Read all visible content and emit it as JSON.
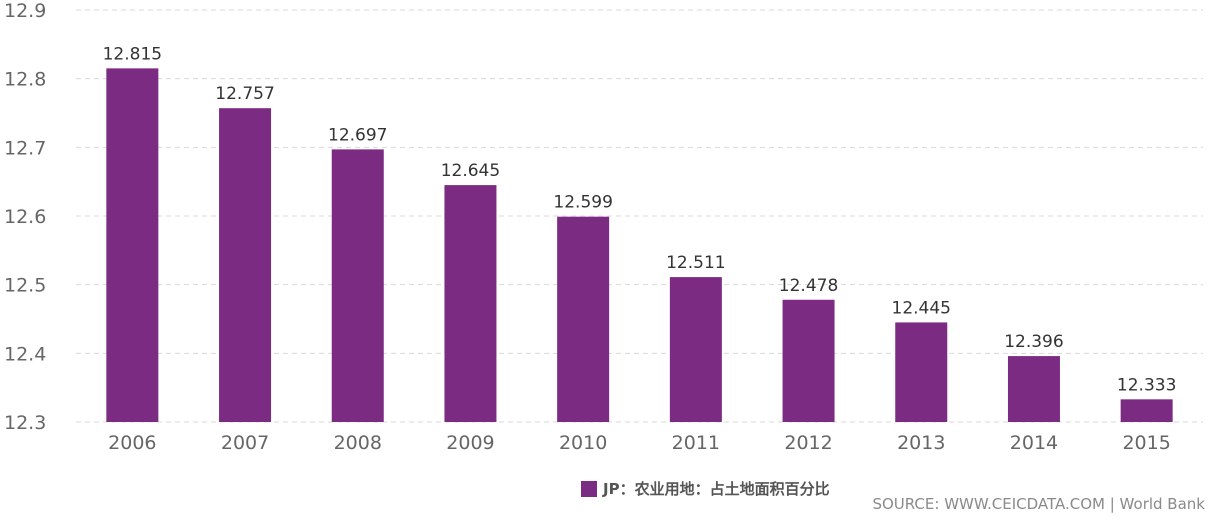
{
  "chart_data": {
    "type": "bar",
    "categories": [
      "2006",
      "2007",
      "2008",
      "2009",
      "2010",
      "2011",
      "2012",
      "2013",
      "2014",
      "2015"
    ],
    "series": [
      {
        "name": "JP：农业用地：占土地面积百分比",
        "values": [
          12.815,
          12.757,
          12.697,
          12.645,
          12.599,
          12.511,
          12.478,
          12.445,
          12.396,
          12.333
        ],
        "labels": [
          "12.815",
          "12.757",
          "12.697",
          "12.645",
          "12.599",
          "12.511",
          "12.478",
          "12.445",
          "12.396",
          "12.333"
        ]
      }
    ],
    "ylim": [
      12.3,
      12.9
    ],
    "yticks": [
      12.3,
      12.4,
      12.5,
      12.6,
      12.7,
      12.8,
      12.9
    ],
    "ytick_labels": [
      "12.3",
      "12.4",
      "12.5",
      "12.6",
      "12.7",
      "12.8",
      "12.9"
    ],
    "grid": true,
    "legend_position": "bottom",
    "colors": {
      "bar": "#7b2b82",
      "grid": "#d9d9d9",
      "tick_text": "#666666",
      "label_text": "#333333"
    }
  },
  "legend": {
    "label": "JP：农业用地：占土地面积百分比"
  },
  "source": {
    "text": "SOURCE: WWW.CEICDATA.COM | World Bank"
  }
}
